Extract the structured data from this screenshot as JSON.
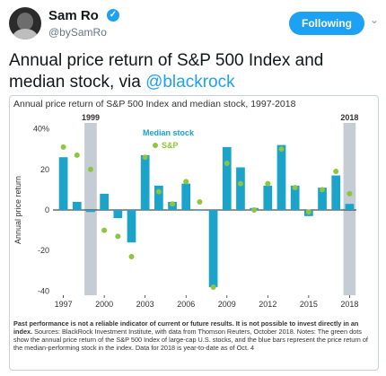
{
  "header": {
    "name": "Sam Ro",
    "handle": "@bySamRo",
    "follow_label": "Following"
  },
  "tweet": {
    "text_before": "Annual price return of S&P 500 Index and median stock, via ",
    "link": "@blackrock"
  },
  "card": {
    "chart_title": "Annual price return of S&P 500 Index and median stock, 1997-2018",
    "notes_bold": "Past performance is not a reliable indicator of current or future results. It is not possible to invest directly in an index.",
    "notes_rest": " Sources: BlackRock Investment Institute, with data from Thomson Reuters, October 2018. Notes: The green dots show the annual price return of the S&P 500 Index of large-cap U.S. stocks, and the blue bars represent the price return of the median-performing stock in the index. Data for 2018 is year-to-date as of Oct. 4"
  },
  "chart_data": {
    "type": "bar",
    "title": "Annual price return of S&P 500 Index and median stock, 1997-2018",
    "ylabel": "Annual price return",
    "ylim": [
      -42,
      42
    ],
    "y_ticks": [
      -40,
      -20,
      0,
      20,
      40
    ],
    "y_tick_labels": [
      "-40",
      "-20",
      "0",
      "20",
      "40%"
    ],
    "x_tick_labels": [
      "1997",
      "2000",
      "2003",
      "2006",
      "2009",
      "2012",
      "2015",
      "2018"
    ],
    "categories": [
      "1997",
      "1998",
      "1999",
      "2000",
      "2001",
      "2002",
      "2003",
      "2004",
      "2005",
      "2006",
      "2007",
      "2008",
      "2009",
      "2010",
      "2011",
      "2012",
      "2013",
      "2014",
      "2015",
      "2016",
      "2017",
      "2018"
    ],
    "highlight_years": [
      "1999",
      "2018"
    ],
    "series": [
      {
        "name": "Median stock",
        "kind": "bar",
        "color": "#1ba3c9",
        "values": [
          26,
          4,
          -1,
          8,
          -4,
          -16,
          27,
          12,
          4,
          13,
          0,
          -38,
          31,
          21,
          1,
          12,
          32,
          12,
          -3,
          11,
          17,
          3
        ]
      },
      {
        "name": "S&P",
        "kind": "dot",
        "color": "#8cc63f",
        "values": [
          31,
          27,
          20,
          -10,
          -13,
          -23,
          26,
          9,
          3,
          14,
          4,
          -38,
          23,
          13,
          0,
          13,
          30,
          11,
          -1,
          10,
          19,
          8
        ]
      }
    ],
    "legend_position": "top-center",
    "grid": false
  }
}
